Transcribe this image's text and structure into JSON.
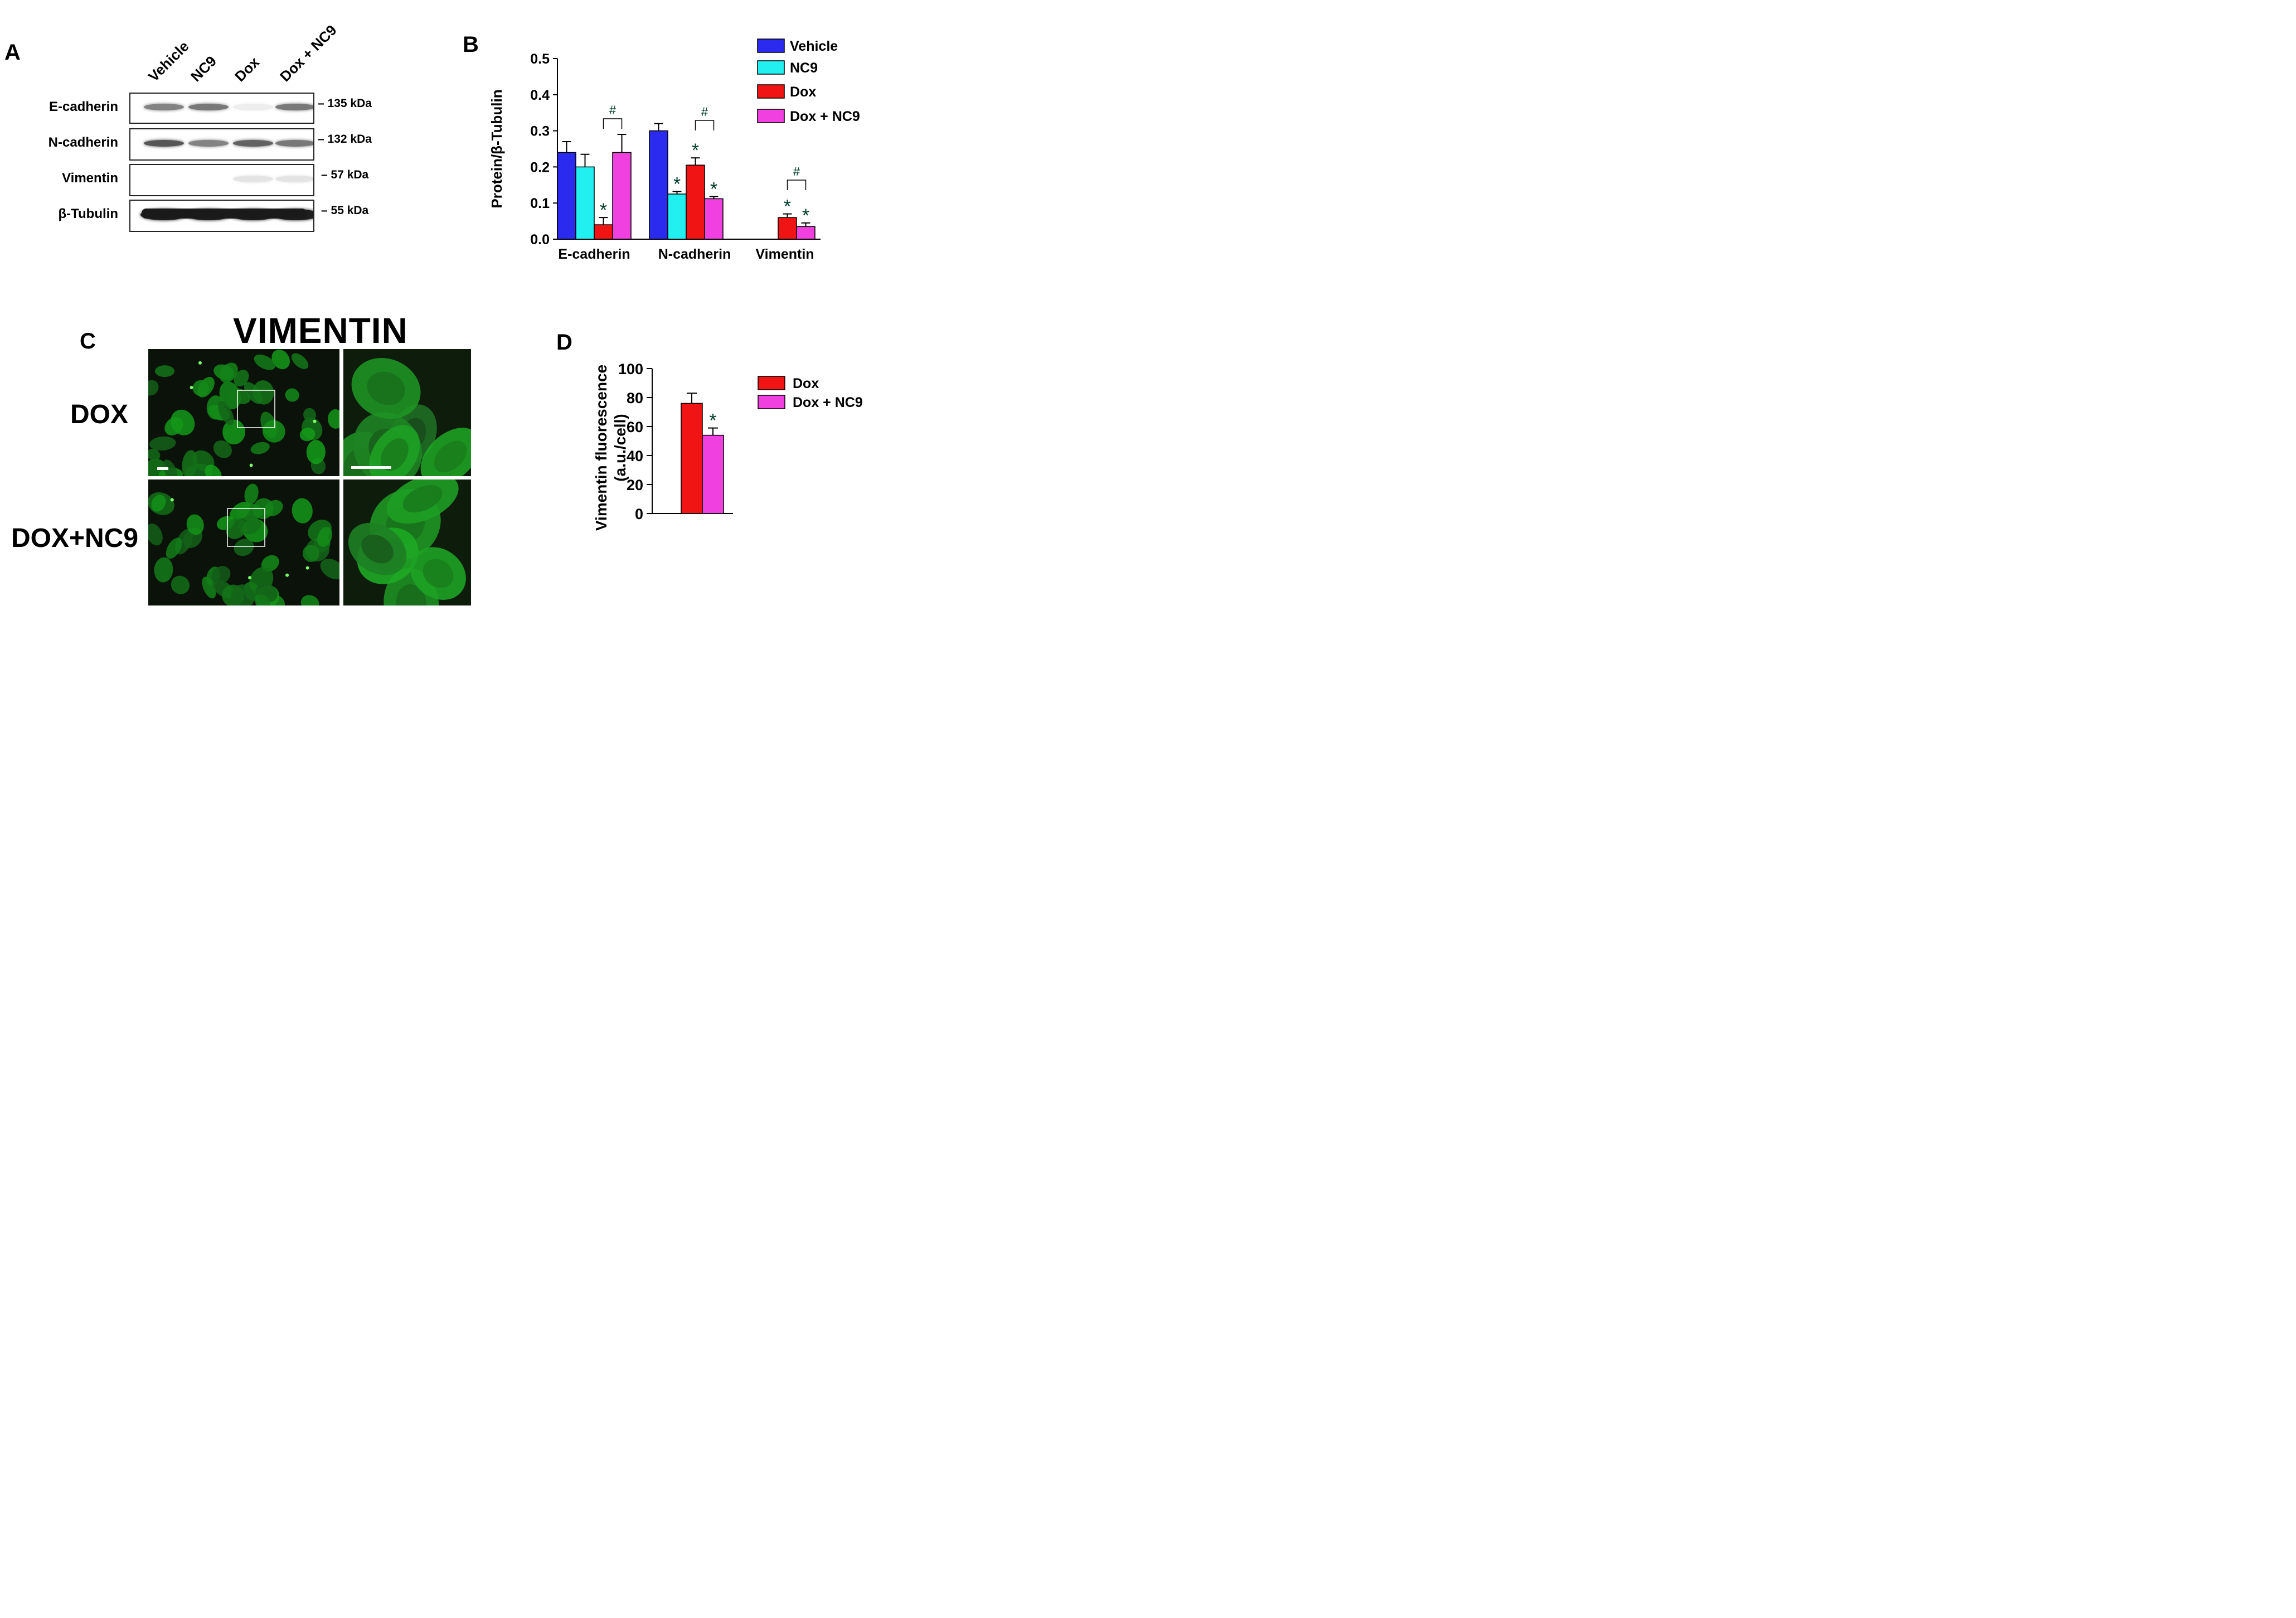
{
  "panelA": {
    "label": "A",
    "lanes": [
      "Vehicle",
      "NC9",
      "Dox",
      "Dox + NC9"
    ],
    "rows": [
      {
        "name": "E-cadherin",
        "size": "135 kDa",
        "intensity": [
          0.55,
          0.6,
          0.08,
          0.6
        ]
      },
      {
        "name": "N-cadherin",
        "size": "132 kDa",
        "intensity": [
          0.75,
          0.55,
          0.7,
          0.6
        ]
      },
      {
        "name": "Vimentin",
        "size": "57 kDa",
        "intensity": [
          0.0,
          0.0,
          0.12,
          0.12
        ]
      },
      {
        "name": "β-Tubulin",
        "size": "55 kDa",
        "intensity": [
          1.0,
          1.0,
          1.0,
          1.0
        ]
      }
    ]
  },
  "panelB": {
    "label": "B",
    "chart_data": {
      "type": "bar",
      "ylabel": "Protein/β-Tubulin",
      "ylim": [
        0,
        0.5
      ],
      "yticks": [
        "0.0",
        "0.1",
        "0.2",
        "0.3",
        "0.4",
        "0.5"
      ],
      "categories": [
        "E-cadherin",
        "N-cadherin",
        "Vimentin"
      ],
      "series": [
        {
          "name": "Vehicle",
          "color": "#2b2bf0",
          "values": [
            0.24,
            0.3,
            0
          ],
          "errors": [
            0.03,
            0.02,
            0
          ],
          "sig": [
            "",
            "",
            ""
          ]
        },
        {
          "name": "NC9",
          "color": "#22f0f0",
          "values": [
            0.2,
            0.125,
            0
          ],
          "errors": [
            0.035,
            0.007,
            0
          ],
          "sig": [
            "",
            "*",
            ""
          ]
        },
        {
          "name": "Dox",
          "color": "#f01414",
          "values": [
            0.04,
            0.205,
            0.06
          ],
          "errors": [
            0.02,
            0.02,
            0.01
          ],
          "sig": [
            "*",
            "*",
            "*"
          ]
        },
        {
          "name": "Dox + NC9",
          "color": "#f040e0",
          "values": [
            0.24,
            0.112,
            0.035
          ],
          "errors": [
            0.05,
            0.006,
            0.01
          ],
          "sig": [
            "",
            "*",
            "*"
          ]
        }
      ],
      "brackets": [
        {
          "category": "E-cadherin",
          "from": "Dox",
          "to": "Dox + NC9",
          "mark": "#"
        },
        {
          "category": "N-cadherin",
          "from": "Dox",
          "to": "Dox + NC9",
          "mark": "#"
        },
        {
          "category": "Vimentin",
          "from": "Dox",
          "to": "Dox + NC9",
          "mark": "#"
        }
      ],
      "legend_position": "top-right"
    }
  },
  "panelC": {
    "label": "C",
    "title": "VIMENTIN",
    "rows": [
      "DOX",
      "DOX+NC9"
    ]
  },
  "panelD": {
    "label": "D",
    "chart_data": {
      "type": "bar",
      "ylabel": "Vimentin fluorescence (a.u./cell)",
      "ylabel_lines": [
        "Vimentin fluorescence",
        "(a.u./cell)"
      ],
      "ylim": [
        0,
        100
      ],
      "yticks": [
        "0",
        "20",
        "40",
        "60",
        "80",
        "100"
      ],
      "series": [
        {
          "name": "Dox",
          "color": "#f01414",
          "value": 76,
          "error": 7,
          "sig": ""
        },
        {
          "name": "Dox + NC9",
          "color": "#f040e0",
          "value": 54,
          "error": 5,
          "sig": "*"
        }
      ],
      "legend_position": "top-right"
    }
  }
}
